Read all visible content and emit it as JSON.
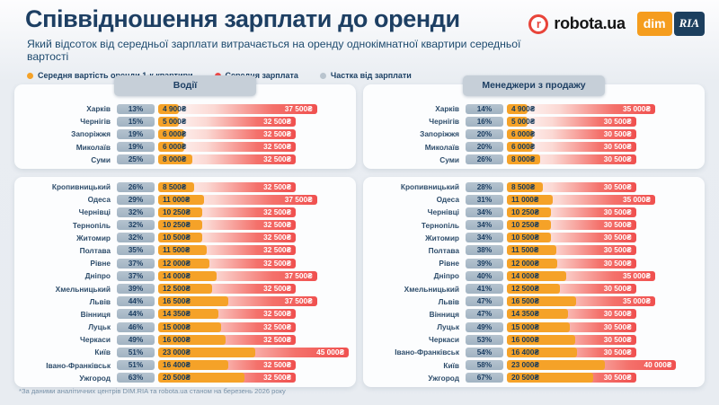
{
  "chart_data": {
    "type": "bar",
    "title": "Співвідношення зарплати до оренди",
    "subtitle": "Який відсоток від середньої зарплати витрачається на оренду однокімнатної квартири середньої вартості",
    "footnote": "*За даними аналітичних центрів DIM.RIA та robota.ua станом на березень 2026 року",
    "currency_symbol": "₴",
    "x_scale_max": 45000,
    "colors": {
      "rent": "#F5A228",
      "salary": "#F0504F",
      "share": "#B9C4CE",
      "navy": "#1D3F63"
    },
    "legend": [
      {
        "label": "Середня вартість оренди 1-к квартири",
        "color": "#F5A228"
      },
      {
        "label": "Середня зарплата",
        "color": "#EF4B4A"
      },
      {
        "label": "Частка від зарплати",
        "color": "#B9C4CE"
      }
    ],
    "panels": [
      {
        "label": "Водії",
        "groups": [
          {
            "rows": [
              {
                "city": "Харків",
                "percent": 13,
                "rent": 4900,
                "salary": 37500
              },
              {
                "city": "Чернігів",
                "percent": 15,
                "rent": 5000,
                "salary": 32500
              },
              {
                "city": "Запоріжжя",
                "percent": 19,
                "rent": 6000,
                "salary": 32500
              },
              {
                "city": "Миколаїв",
                "percent": 19,
                "rent": 6000,
                "salary": 32500
              },
              {
                "city": "Суми",
                "percent": 25,
                "rent": 8000,
                "salary": 32500
              }
            ]
          },
          {
            "rows": [
              {
                "city": "Кропивницький",
                "percent": 26,
                "rent": 8500,
                "salary": 32500
              },
              {
                "city": "Одеса",
                "percent": 29,
                "rent": 11000,
                "salary": 37500
              },
              {
                "city": "Чернівці",
                "percent": 32,
                "rent": 10250,
                "salary": 32500
              },
              {
                "city": "Тернопіль",
                "percent": 32,
                "rent": 10250,
                "salary": 32500
              },
              {
                "city": "Житомир",
                "percent": 32,
                "rent": 10500,
                "salary": 32500
              },
              {
                "city": "Полтава",
                "percent": 35,
                "rent": 11500,
                "salary": 32500
              },
              {
                "city": "Рівне",
                "percent": 37,
                "rent": 12000,
                "salary": 32500
              },
              {
                "city": "Дніпро",
                "percent": 37,
                "rent": 14000,
                "salary": 37500
              },
              {
                "city": "Хмельницький",
                "percent": 39,
                "rent": 12500,
                "salary": 32500
              },
              {
                "city": "Львів",
                "percent": 44,
                "rent": 16500,
                "salary": 37500
              },
              {
                "city": "Вінниця",
                "percent": 44,
                "rent": 14350,
                "salary": 32500
              },
              {
                "city": "Луцьк",
                "percent": 46,
                "rent": 15000,
                "salary": 32500
              },
              {
                "city": "Черкаси",
                "percent": 49,
                "rent": 16000,
                "salary": 32500
              },
              {
                "city": "Київ",
                "percent": 51,
                "rent": 23000,
                "salary": 45000
              },
              {
                "city": "Івано-Франківськ",
                "percent": 51,
                "rent": 16400,
                "salary": 32500
              },
              {
                "city": "Ужгород",
                "percent": 63,
                "rent": 20500,
                "salary": 32500
              }
            ]
          }
        ]
      },
      {
        "label": "Менеджери з продажу",
        "groups": [
          {
            "rows": [
              {
                "city": "Харків",
                "percent": 14,
                "rent": 4900,
                "salary": 35000
              },
              {
                "city": "Чернігів",
                "percent": 16,
                "rent": 5000,
                "salary": 30500
              },
              {
                "city": "Запоріжжя",
                "percent": 20,
                "rent": 6000,
                "salary": 30500
              },
              {
                "city": "Миколаїв",
                "percent": 20,
                "rent": 6000,
                "salary": 30500
              },
              {
                "city": "Суми",
                "percent": 26,
                "rent": 8000,
                "salary": 30500
              }
            ]
          },
          {
            "rows": [
              {
                "city": "Кропивницький",
                "percent": 28,
                "rent": 8500,
                "salary": 30500
              },
              {
                "city": "Одеса",
                "percent": 31,
                "rent": 11000,
                "salary": 35000
              },
              {
                "city": "Чернівці",
                "percent": 34,
                "rent": 10250,
                "salary": 30500
              },
              {
                "city": "Тернопіль",
                "percent": 34,
                "rent": 10250,
                "salary": 30500
              },
              {
                "city": "Житомир",
                "percent": 34,
                "rent": 10500,
                "salary": 30500
              },
              {
                "city": "Полтава",
                "percent": 38,
                "rent": 11500,
                "salary": 30500
              },
              {
                "city": "Рівне",
                "percent": 39,
                "rent": 12000,
                "salary": 30500
              },
              {
                "city": "Дніпро",
                "percent": 40,
                "rent": 14000,
                "salary": 35000
              },
              {
                "city": "Хмельницький",
                "percent": 41,
                "rent": 12500,
                "salary": 30500
              },
              {
                "city": "Львів",
                "percent": 47,
                "rent": 16500,
                "salary": 35000
              },
              {
                "city": "Вінниця",
                "percent": 47,
                "rent": 14350,
                "salary": 30500
              },
              {
                "city": "Луцьк",
                "percent": 49,
                "rent": 15000,
                "salary": 30500
              },
              {
                "city": "Черкаси",
                "percent": 53,
                "rent": 16000,
                "salary": 30500
              },
              {
                "city": "Івано-Франківськ",
                "percent": 54,
                "rent": 16400,
                "salary": 30500
              },
              {
                "city": "Київ",
                "percent": 58,
                "rent": 23000,
                "salary": 40000
              },
              {
                "city": "Ужгород",
                "percent": 67,
                "rent": 20500,
                "salary": 30500
              }
            ]
          }
        ]
      }
    ]
  },
  "logos": {
    "robota_mark": "r",
    "robota_text": "robota.ua",
    "dim": "dim",
    "ria": "RIA"
  }
}
